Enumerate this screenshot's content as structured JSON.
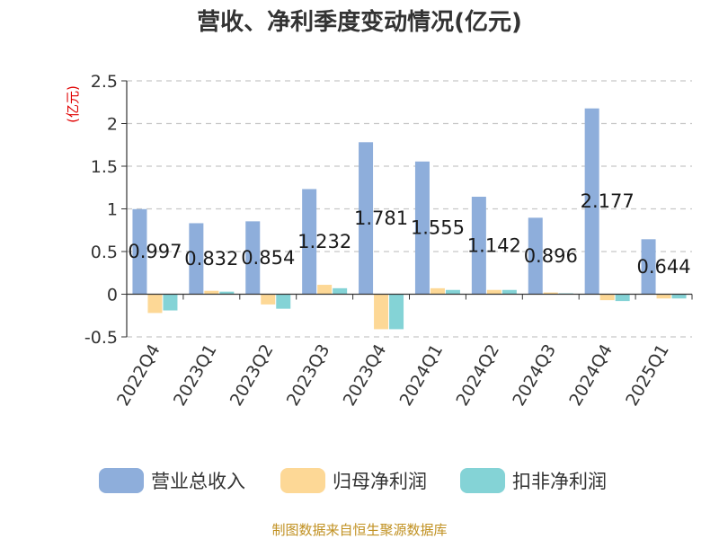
{
  "chart_data": {
    "type": "bar",
    "title": "营收、净利季度变动情况(亿元)",
    "ylabel": "(亿元)",
    "categories": [
      "2022Q4",
      "2023Q1",
      "2023Q2",
      "2023Q3",
      "2023Q4",
      "2024Q1",
      "2024Q2",
      "2024Q3",
      "2024Q4",
      "2025Q1"
    ],
    "series": [
      {
        "name": "营业总收入",
        "color": "#8eaedb",
        "values": [
          0.997,
          0.832,
          0.854,
          1.232,
          1.781,
          1.555,
          1.142,
          0.896,
          2.177,
          0.644
        ],
        "labels": [
          "0.997",
          "0.832",
          "0.854",
          "1.232",
          "1.781",
          "1.555",
          "1.142",
          "0.896",
          "2.177",
          "0.644"
        ]
      },
      {
        "name": "归母净利润",
        "color": "#fdd896",
        "values": [
          -0.22,
          0.04,
          -0.12,
          0.11,
          -0.41,
          0.07,
          0.05,
          0.02,
          -0.07,
          -0.05
        ]
      },
      {
        "name": "扣非净利润",
        "color": "#84d3d6",
        "values": [
          -0.19,
          0.03,
          -0.17,
          0.07,
          -0.41,
          0.05,
          0.05,
          0.01,
          -0.08,
          -0.05
        ]
      }
    ],
    "ylim": [
      -0.5,
      2.5
    ],
    "yticks": [
      -0.5,
      0,
      0.5,
      1,
      1.5,
      2,
      2.5
    ],
    "ytick_labels": [
      "-0.5",
      "0",
      "0.5",
      "1",
      "1.5",
      "2",
      "2.5"
    ],
    "grid": true,
    "legend": "bottom",
    "source": "制图数据来自恒生聚源数据库"
  }
}
